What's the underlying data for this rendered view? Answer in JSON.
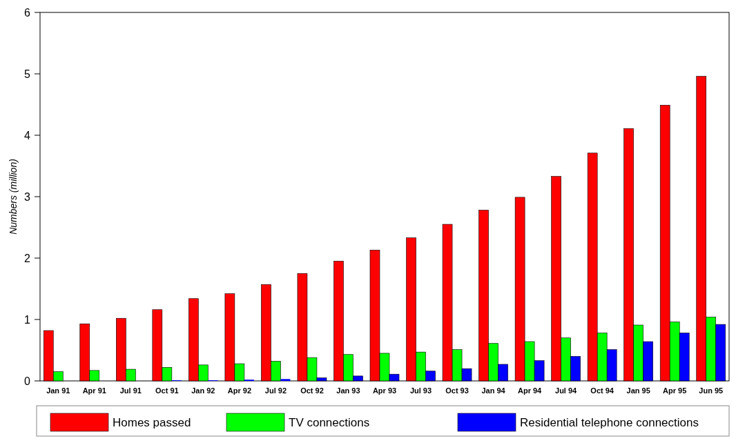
{
  "chart_data": {
    "type": "bar",
    "ylabel": "Numbers (million)",
    "categories": [
      "Jan 91",
      "Apr 91",
      "Jul 91",
      "Oct 91",
      "Jan 92",
      "Apr 92",
      "Jul 92",
      "Oct 92",
      "Jan 93",
      "Apr 93",
      "Jul 93",
      "Oct 93",
      "Jan 94",
      "Apr 94",
      "Jul 94",
      "Oct 94",
      "Jan 95",
      "Apr 95",
      "Jun 95"
    ],
    "series": [
      {
        "name": "Homes passed",
        "color": "#ff0000",
        "values": [
          0.82,
          0.93,
          1.02,
          1.16,
          1.34,
          1.42,
          1.57,
          1.75,
          1.95,
          2.13,
          2.33,
          2.55,
          2.78,
          2.99,
          3.33,
          3.71,
          4.11,
          4.49,
          4.96
        ]
      },
      {
        "name": "TV connections",
        "color": "#00ff00",
        "values": [
          0.15,
          0.17,
          0.19,
          0.22,
          0.26,
          0.28,
          0.32,
          0.38,
          0.43,
          0.45,
          0.47,
          0.51,
          0.61,
          0.64,
          0.7,
          0.78,
          0.91,
          0.96,
          1.04
        ]
      },
      {
        "name": "Residential telephone connections",
        "color": "#0000ff",
        "values": [
          0,
          0,
          0,
          0.01,
          0.01,
          0.02,
          0.03,
          0.05,
          0.08,
          0.11,
          0.16,
          0.2,
          0.27,
          0.33,
          0.4,
          0.51,
          0.64,
          0.78,
          0.92
        ]
      }
    ],
    "ylim": [
      0,
      6
    ],
    "yticks": [
      0,
      1,
      2,
      3,
      4,
      5,
      6
    ],
    "grid": false,
    "legend": "bottom"
  }
}
